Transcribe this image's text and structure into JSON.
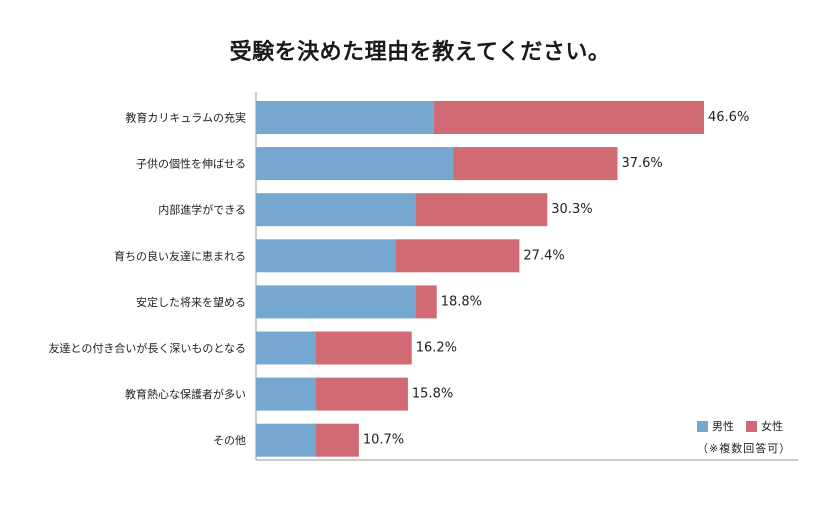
{
  "chart_data": {
    "type": "bar",
    "orientation": "horizontal",
    "stacked": true,
    "title": "受験を決めた理由を教えてください。",
    "categories": [
      "教育カリキュラムの充実",
      "子供の個性を伸ばせる",
      "内部進学ができる",
      "育ちの良い友達に恵まれる",
      "安定した将来を望める",
      "友達との付き合いが長く深いものとなる",
      "教育熱心な保護者が多い",
      "その他"
    ],
    "totals": [
      46.6,
      37.6,
      30.3,
      27.4,
      18.8,
      16.2,
      15.8,
      10.7
    ],
    "value_labels": [
      "46.6%",
      "37.6%",
      "30.3%",
      "27.4%",
      "18.8%",
      "16.2%",
      "15.8%",
      "10.7%"
    ],
    "series": [
      {
        "name": "男性",
        "color": "#75a7d0",
        "values": [
          18.5,
          20.5,
          16.6,
          14.5,
          16.6,
          6.2,
          6.2,
          6.2
        ]
      },
      {
        "name": "女性",
        "color": "#d06b74",
        "values": [
          28.1,
          17.1,
          13.7,
          12.9,
          2.2,
          10.0,
          9.6,
          4.5
        ]
      }
    ],
    "xlim": [
      0,
      60
    ],
    "grid": false,
    "legend_position": "bottom-right",
    "note": "（※複数回答可）"
  }
}
